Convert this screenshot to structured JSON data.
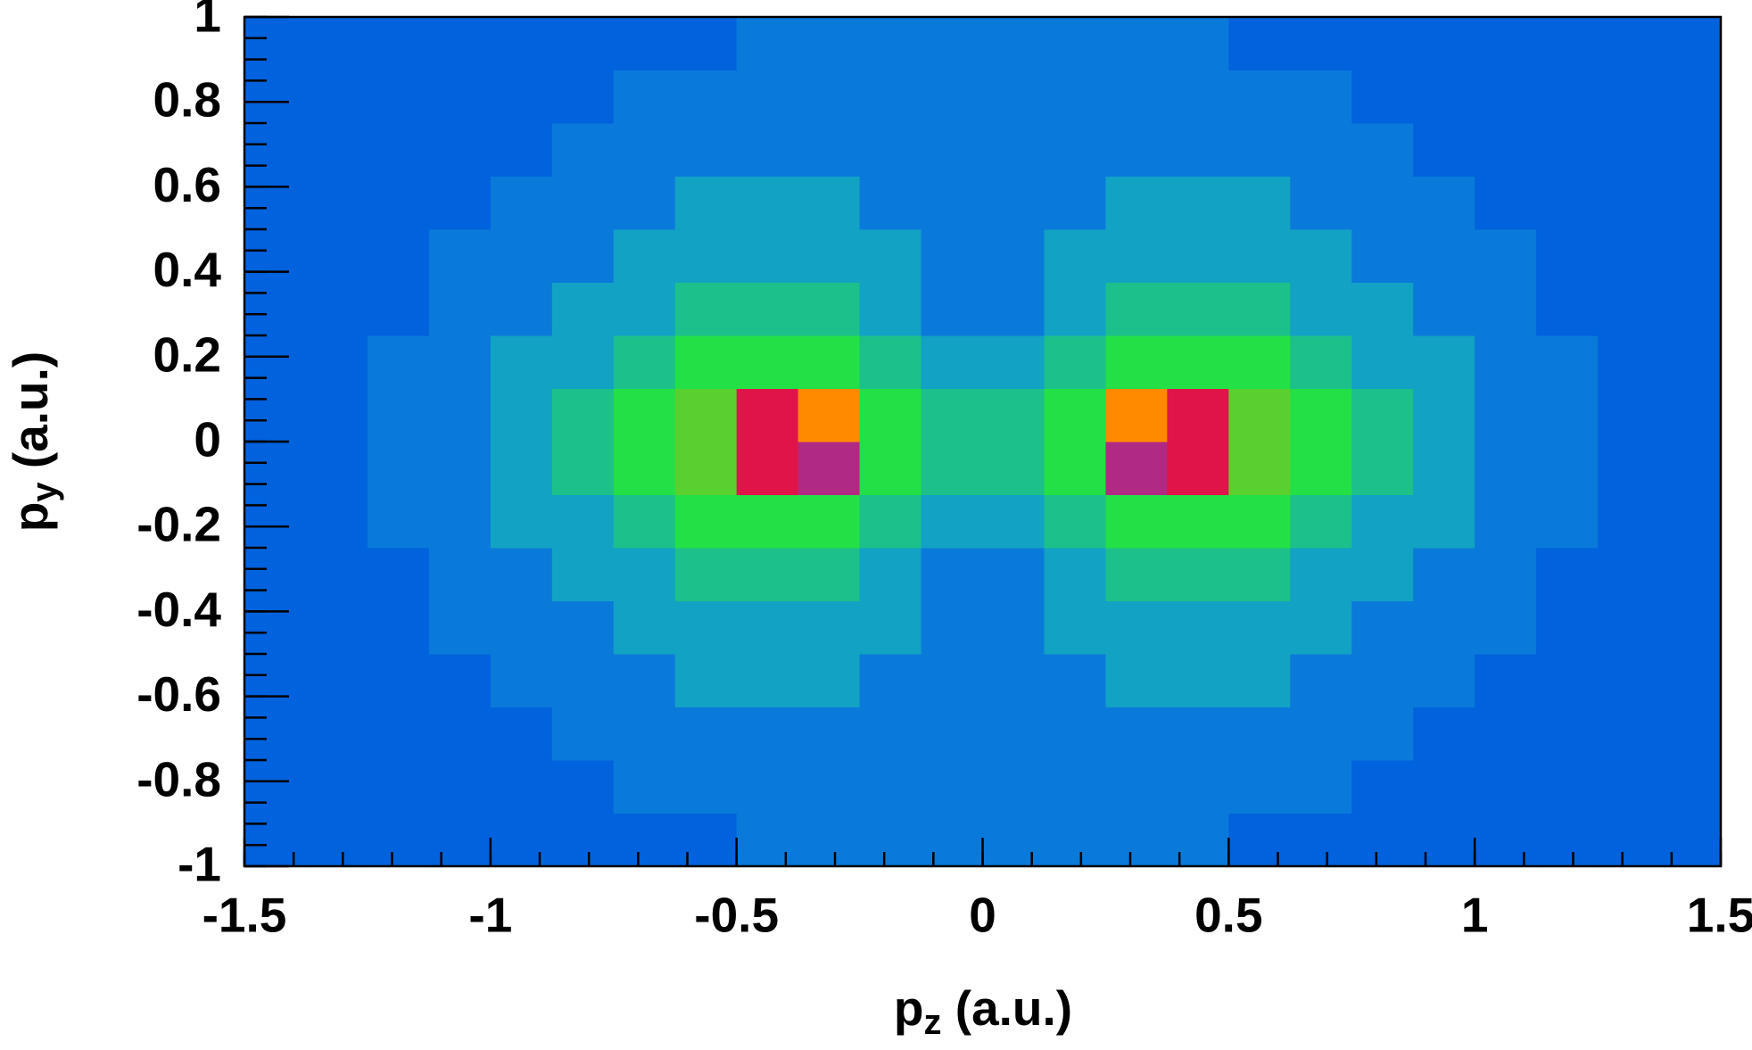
{
  "chart_data": {
    "type": "heatmap",
    "xlabel": [
      "p",
      "z",
      " (a.u.)"
    ],
    "ylabel": [
      "p",
      "y",
      " (a.u.)"
    ],
    "xlim": [
      -1.5,
      1.5
    ],
    "ylim": [
      -1,
      1
    ],
    "xticks": [
      -1.5,
      -1,
      -0.5,
      0,
      0.5,
      1,
      1.5
    ],
    "yticks": [
      -1,
      -0.8,
      -0.6,
      -0.4,
      -0.2,
      0,
      0.2,
      0.4,
      0.6,
      0.8,
      1
    ],
    "xminorticks": [
      -1.5,
      -1.4,
      -1.3,
      -1.2,
      -1.1,
      -1,
      -0.9,
      -0.8,
      -0.7,
      -0.6,
      -0.5,
      -0.4,
      -0.3,
      -0.2,
      -0.1,
      0,
      0.1,
      0.2,
      0.3,
      0.4,
      0.5,
      0.6,
      0.7,
      0.8,
      0.9,
      1,
      1.1,
      1.2,
      1.3,
      1.4,
      1.5
    ],
    "yminorticks": [
      -1,
      -0.95,
      -0.9,
      -0.85,
      -0.8,
      -0.75,
      -0.7,
      -0.65,
      -0.6,
      -0.55,
      -0.5,
      -0.45,
      -0.4,
      -0.35,
      -0.3,
      -0.25,
      -0.2,
      -0.15,
      -0.1,
      -0.05,
      0,
      0.05,
      0.1,
      0.15,
      0.2,
      0.25,
      0.3,
      0.35,
      0.4,
      0.45,
      0.5,
      0.55,
      0.6,
      0.65,
      0.7,
      0.75,
      0.8,
      0.85,
      0.9,
      0.95,
      1
    ],
    "xbins": [
      -1.5,
      -1.375,
      -1.25,
      -1.125,
      -1,
      -0.875,
      -0.75,
      -0.625,
      -0.5,
      -0.375,
      -0.25,
      -0.125,
      0,
      0.125,
      0.25,
      0.375,
      0.5,
      0.625,
      0.75,
      0.875,
      1,
      1.125,
      1.25,
      1.375,
      1.5
    ],
    "ybins": [
      -1,
      -0.875,
      -0.75,
      -0.625,
      -0.5,
      -0.375,
      -0.25,
      -0.125,
      0,
      0.125,
      0.25,
      0.375,
      0.5,
      0.625,
      0.75,
      0.875,
      1
    ],
    "zlim": [
      0,
      10
    ],
    "colorscale": [
      "#0062dc",
      "#0a7ada",
      "#12a2c4",
      "#1cc08a",
      "#22e046",
      "#3cf020",
      "#5ad030",
      "#7a4aa0",
      "#b02a84",
      "#e01448",
      "#ff8a00"
    ],
    "z": [
      [
        0,
        0,
        0,
        0,
        0,
        0,
        0,
        0,
        1,
        1,
        1,
        1,
        1,
        1,
        1,
        1,
        0,
        0,
        0,
        0,
        0,
        0,
        0,
        0
      ],
      [
        0,
        0,
        0,
        0,
        0,
        0,
        1,
        1,
        1,
        1,
        1,
        1,
        1,
        1,
        1,
        1,
        1,
        1,
        0,
        0,
        0,
        0,
        0,
        0
      ],
      [
        0,
        0,
        0,
        0,
        0,
        1,
        1,
        1,
        1,
        1,
        1,
        1,
        1,
        1,
        1,
        1,
        1,
        1,
        1,
        0,
        0,
        0,
        0,
        0
      ],
      [
        0,
        0,
        0,
        0,
        1,
        1,
        1,
        2,
        2,
        2,
        1,
        1,
        1,
        1,
        2,
        2,
        2,
        1,
        1,
        1,
        0,
        0,
        0,
        0
      ],
      [
        0,
        0,
        0,
        1,
        1,
        1,
        2,
        2,
        2,
        2,
        2,
        1,
        1,
        2,
        2,
        2,
        2,
        2,
        1,
        1,
        1,
        0,
        0,
        0
      ],
      [
        0,
        0,
        0,
        1,
        1,
        2,
        2,
        3,
        3,
        3,
        2,
        1,
        1,
        2,
        3,
        3,
        3,
        2,
        2,
        1,
        1,
        0,
        0,
        0
      ],
      [
        0,
        0,
        1,
        1,
        2,
        2,
        3,
        4,
        4,
        4,
        3,
        2,
        2,
        3,
        4,
        4,
        4,
        3,
        2,
        2,
        1,
        1,
        0,
        0
      ],
      [
        0,
        0,
        1,
        1,
        2,
        3,
        4,
        6,
        9,
        8,
        4,
        3,
        3,
        4,
        8,
        9,
        6,
        4,
        3,
        2,
        1,
        1,
        0,
        0
      ],
      [
        0,
        0,
        1,
        1,
        2,
        3,
        4,
        6,
        9,
        10,
        4,
        3,
        3,
        4,
        10,
        9,
        6,
        4,
        3,
        2,
        1,
        1,
        0,
        0
      ],
      [
        0,
        0,
        1,
        1,
        2,
        2,
        3,
        4,
        4,
        4,
        3,
        2,
        2,
        3,
        4,
        4,
        4,
        3,
        2,
        2,
        1,
        1,
        0,
        0
      ],
      [
        0,
        0,
        0,
        1,
        1,
        2,
        2,
        3,
        3,
        3,
        2,
        1,
        1,
        2,
        3,
        3,
        3,
        2,
        2,
        1,
        1,
        0,
        0,
        0
      ],
      [
        0,
        0,
        0,
        1,
        1,
        1,
        2,
        2,
        2,
        2,
        2,
        1,
        1,
        2,
        2,
        2,
        2,
        2,
        1,
        1,
        1,
        0,
        0,
        0
      ],
      [
        0,
        0,
        0,
        0,
        1,
        1,
        1,
        2,
        2,
        2,
        1,
        1,
        1,
        1,
        2,
        2,
        2,
        1,
        1,
        1,
        0,
        0,
        0,
        0
      ],
      [
        0,
        0,
        0,
        0,
        0,
        1,
        1,
        1,
        1,
        1,
        1,
        1,
        1,
        1,
        1,
        1,
        1,
        1,
        1,
        0,
        0,
        0,
        0,
        0
      ],
      [
        0,
        0,
        0,
        0,
        0,
        0,
        1,
        1,
        1,
        1,
        1,
        1,
        1,
        1,
        1,
        1,
        1,
        1,
        0,
        0,
        0,
        0,
        0,
        0
      ],
      [
        0,
        0,
        0,
        0,
        0,
        0,
        0,
        0,
        1,
        1,
        1,
        1,
        1,
        1,
        1,
        1,
        0,
        0,
        0,
        0,
        0,
        0,
        0,
        0
      ]
    ]
  }
}
